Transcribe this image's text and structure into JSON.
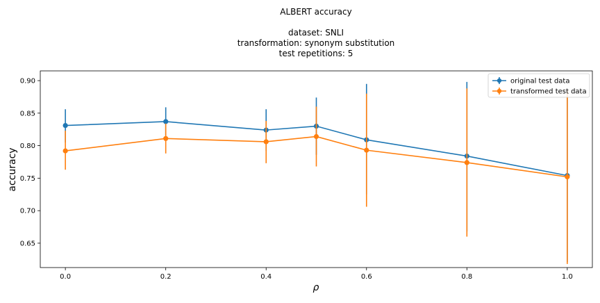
{
  "chart_data": {
    "type": "line",
    "title_lines": [
      "ALBERT accuracy",
      "",
      "dataset: SNLI",
      "transformation: synonym substitution",
      "test repetitions: 5"
    ],
    "xlabel": "ρ",
    "ylabel": "accuracy",
    "xlim": [
      -0.05,
      1.05
    ],
    "ylim": [
      0.6125,
      0.915
    ],
    "xticks": [
      0.0,
      0.2,
      0.4,
      0.6,
      0.8,
      1.0
    ],
    "xtick_labels": [
      "0.0",
      "0.2",
      "0.4",
      "0.6",
      "0.8",
      "1.0"
    ],
    "yticks": [
      0.65,
      0.7,
      0.75,
      0.8,
      0.85,
      0.9
    ],
    "ytick_labels": [
      "0.65",
      "0.70",
      "0.75",
      "0.80",
      "0.85",
      "0.90"
    ],
    "grid": false,
    "legend_position": "top-right",
    "x": [
      0.0,
      0.2,
      0.4,
      0.5,
      0.6,
      0.8,
      1.0
    ],
    "series": [
      {
        "name": "original test data",
        "color": "#1f77b4",
        "values": [
          0.831,
          0.837,
          0.824,
          0.83,
          0.809,
          0.784,
          0.754
        ],
        "err_low": [
          0.805,
          0.815,
          0.792,
          0.786,
          0.725,
          0.668,
          0.621
        ],
        "err_high": [
          0.856,
          0.859,
          0.856,
          0.874,
          0.895,
          0.898,
          0.887
        ]
      },
      {
        "name": "transformed test data",
        "color": "#ff7f0e",
        "values": [
          0.792,
          0.811,
          0.806,
          0.814,
          0.793,
          0.774,
          0.752
        ],
        "err_low": [
          0.763,
          0.788,
          0.773,
          0.768,
          0.706,
          0.66,
          0.618
        ],
        "err_high": [
          0.823,
          0.834,
          0.838,
          0.86,
          0.88,
          0.888,
          0.886
        ]
      }
    ]
  }
}
